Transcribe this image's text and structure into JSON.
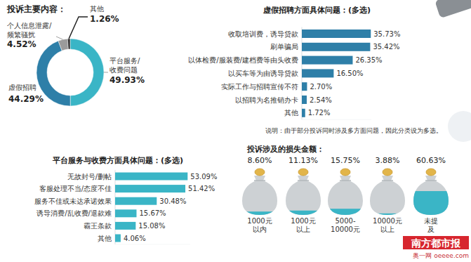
{
  "chart_data": [
    {
      "type": "pie",
      "title": "投诉主要内容：",
      "categories": [
        "平台服务/收费问题",
        "虚假招聘",
        "个人信息泄露/频繁骚扰",
        "其他"
      ],
      "values": [
        49.93,
        44.29,
        4.52,
        1.26
      ],
      "value_labels": [
        "49.93%",
        "44.29%",
        "4.52%",
        "1.26%"
      ],
      "colors": [
        "#3ab5c6",
        "#2e7fa8",
        "#9b9b9b",
        "#333333"
      ],
      "data_labels": true
    },
    {
      "type": "bar",
      "orientation": "horizontal",
      "title": "虚假招聘方面具体问题：(多选)",
      "categories": [
        "收取培训费，诱导贷款",
        "刷单骗局",
        "以体检费/服装费/建档费等由头收费",
        "以买车等为由诱导贷款",
        "实际工作与招聘宣传不符",
        "以招聘为名推销办卡",
        "其他"
      ],
      "values": [
        35.73,
        35.42,
        26.35,
        16.5,
        2.7,
        2.54,
        1.72
      ],
      "value_labels": [
        "35.73%",
        "35.42%",
        "26.35%",
        "16.50%",
        "2.70%",
        "2.54%",
        "1.72%"
      ],
      "color": "#2e7fa8",
      "xlim": [
        0,
        36
      ],
      "tick_labels": "y",
      "data_labels": true,
      "annotation": "说明：由于部分投诉同时涉及多方面问题，因此分类设为多选。"
    },
    {
      "type": "bar",
      "orientation": "horizontal",
      "title": "平台服务与收费方面具体问题：(多选)",
      "categories": [
        "无故封号/删帖",
        "客服处理不当/态度不佳",
        "服务不佳或未达承诺效果",
        "诱导消费/乱收费/退款难",
        "霸王条款",
        "其他"
      ],
      "values": [
        53.09,
        51.42,
        30.48,
        15.67,
        15.08,
        4.06
      ],
      "value_labels": [
        "53.09%",
        "51.42%",
        "30.48%",
        "15.67%",
        "15.08%",
        "4.06%"
      ],
      "color": "#3ab5c6",
      "xlim": [
        0,
        55
      ],
      "tick_labels": "y",
      "data_labels": true
    },
    {
      "type": "pictorial",
      "title": "投诉涉及的损失金额：",
      "categories": [
        [
          "1000元",
          "以内"
        ],
        [
          "1000元",
          "以上"
        ],
        [
          "5000-",
          "10000元"
        ],
        [
          "10000元",
          "以上"
        ],
        [
          "未提",
          "及"
        ]
      ],
      "values": [
        8.6,
        11.13,
        15.75,
        3.88,
        60.63
      ],
      "value_labels": [
        "8.60%",
        "11.13%",
        "15.75%",
        "3.88%",
        "60.63%"
      ],
      "color": "#3ab5c6",
      "ylim": [
        0,
        100
      ],
      "tick_labels": "x",
      "data_labels": true
    }
  ],
  "source": {
    "logo": "南方都市报",
    "site": "奥一网 oeeee.com"
  }
}
